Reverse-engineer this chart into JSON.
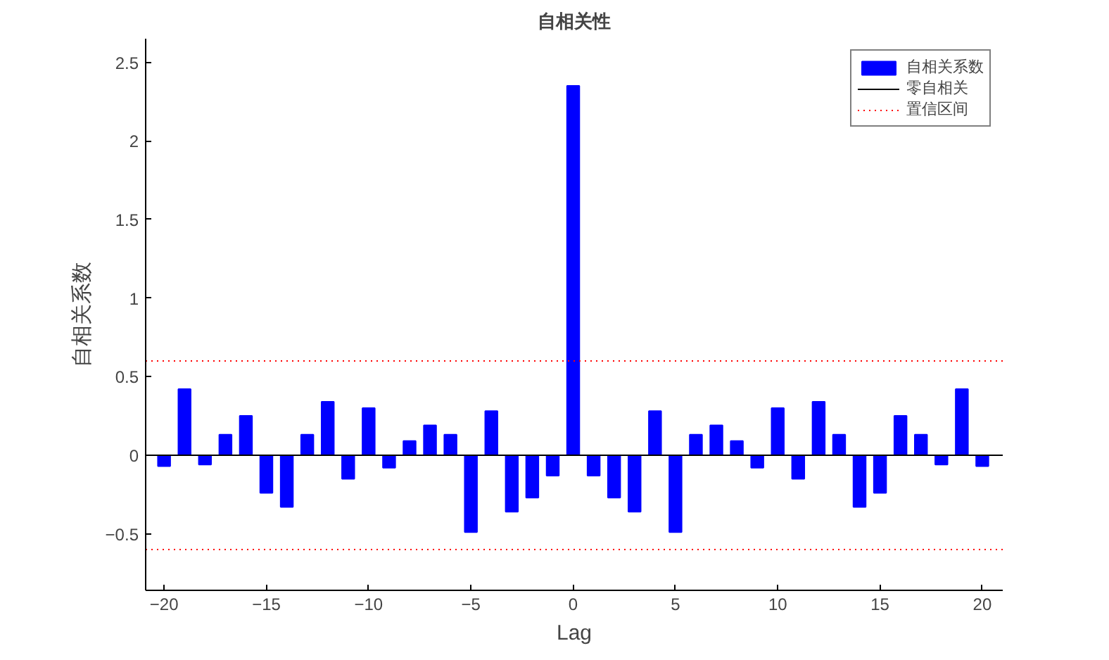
{
  "chart_data": {
    "type": "bar",
    "title": "自相关性",
    "xlabel": "Lag",
    "ylabel": "自相关系数",
    "x": [
      -20,
      -19,
      -18,
      -17,
      -16,
      -15,
      -14,
      -13,
      -12,
      -11,
      -10,
      -9,
      -8,
      -7,
      -6,
      -5,
      -4,
      -3,
      -2,
      -1,
      0,
      1,
      2,
      3,
      4,
      5,
      6,
      7,
      8,
      9,
      10,
      11,
      12,
      13,
      14,
      15,
      16,
      17,
      18,
      19,
      20
    ],
    "series": [
      {
        "name": "自相关系数",
        "color": "#0000ff",
        "values": [
          -0.07,
          0.42,
          -0.06,
          0.13,
          0.25,
          -0.24,
          -0.33,
          0.13,
          0.34,
          -0.15,
          0.3,
          -0.08,
          0.09,
          0.19,
          0.13,
          -0.49,
          0.28,
          -0.36,
          -0.27,
          -0.13,
          2.35,
          -0.13,
          -0.27,
          -0.36,
          0.28,
          -0.49,
          0.13,
          0.19,
          0.09,
          -0.08,
          0.3,
          -0.15,
          0.34,
          0.13,
          -0.33,
          -0.24,
          0.25,
          0.13,
          -0.06,
          0.42,
          -0.07
        ]
      },
      {
        "name": "零自相关",
        "type": "line",
        "color": "#000000",
        "x": [
          -20.9,
          21
        ],
        "values": [
          0,
          0
        ]
      }
    ],
    "ref_lines": [
      {
        "axis": "y",
        "value": 0.6,
        "label": "置信区间",
        "color": "#ff0000",
        "line_style": "dotted"
      },
      {
        "axis": "y",
        "value": -0.6,
        "label": null,
        "color": "#ff0000",
        "line_style": "dotted"
      }
    ],
    "xlim": [
      -20.9,
      21
    ],
    "ylim": [
      -0.86,
      2.65
    ],
    "xticks": [
      -20,
      -15,
      -10,
      -5,
      0,
      5,
      10,
      15,
      20
    ],
    "yticks": [
      -0.5,
      0,
      0.5,
      1,
      1.5,
      2,
      2.5
    ],
    "grid": false,
    "legend": "top right"
  }
}
